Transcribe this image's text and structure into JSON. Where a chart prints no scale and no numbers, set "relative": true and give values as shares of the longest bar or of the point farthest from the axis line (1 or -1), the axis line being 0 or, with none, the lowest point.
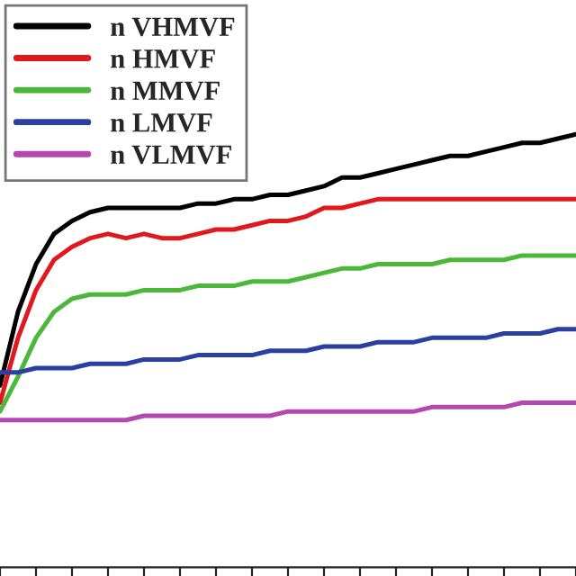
{
  "chart_data": {
    "type": "line",
    "relative": true,
    "legend": "top left",
    "grid": false,
    "categories": [
      null,
      null,
      null,
      null,
      null,
      null,
      null,
      null,
      null,
      null,
      null,
      null,
      null,
      null,
      null,
      null,
      null,
      null,
      null,
      null,
      null,
      null,
      null,
      null,
      null,
      null,
      null,
      null,
      null,
      null,
      null,
      null,
      null
    ],
    "series": [
      {
        "name": "n VHMVF",
        "color": "#000000",
        "values": [
          0.42,
          0.59,
          0.7,
          0.77,
          0.8,
          0.82,
          0.83,
          0.83,
          0.83,
          0.83,
          0.83,
          0.84,
          0.84,
          0.85,
          0.85,
          0.86,
          0.86,
          0.87,
          0.88,
          0.9,
          0.9,
          0.91,
          0.92,
          0.93,
          0.94,
          0.95,
          0.95,
          0.96,
          0.97,
          0.98,
          0.98,
          0.99,
          1.0
        ]
      },
      {
        "name": "n HMVF",
        "color": "#e0191e",
        "values": [
          0.38,
          0.53,
          0.64,
          0.71,
          0.74,
          0.76,
          0.77,
          0.76,
          0.77,
          0.76,
          0.76,
          0.77,
          0.78,
          0.78,
          0.79,
          0.8,
          0.8,
          0.81,
          0.83,
          0.83,
          0.84,
          0.85,
          0.85,
          0.85,
          0.85,
          0.85,
          0.85,
          0.85,
          0.85,
          0.85,
          0.85,
          0.85,
          0.85
        ]
      },
      {
        "name": "n MMVF",
        "color": "#4cb83a",
        "values": [
          0.36,
          0.44,
          0.53,
          0.59,
          0.62,
          0.63,
          0.63,
          0.63,
          0.64,
          0.64,
          0.64,
          0.65,
          0.65,
          0.65,
          0.66,
          0.66,
          0.66,
          0.67,
          0.68,
          0.69,
          0.69,
          0.7,
          0.7,
          0.7,
          0.7,
          0.71,
          0.71,
          0.71,
          0.71,
          0.72,
          0.72,
          0.72,
          0.72
        ]
      },
      {
        "name": "n LMVF",
        "color": "#2a3fa0",
        "values": [
          0.45,
          0.45,
          0.46,
          0.46,
          0.46,
          0.47,
          0.47,
          0.47,
          0.48,
          0.48,
          0.48,
          0.49,
          0.49,
          0.49,
          0.49,
          0.5,
          0.5,
          0.5,
          0.51,
          0.51,
          0.51,
          0.52,
          0.52,
          0.52,
          0.53,
          0.53,
          0.53,
          0.53,
          0.54,
          0.54,
          0.54,
          0.55,
          0.55
        ]
      },
      {
        "name": "n VLMVF",
        "color": "#b548b0",
        "values": [
          0.34,
          0.34,
          0.34,
          0.34,
          0.34,
          0.34,
          0.34,
          0.34,
          0.35,
          0.35,
          0.35,
          0.35,
          0.35,
          0.35,
          0.35,
          0.35,
          0.36,
          0.36,
          0.36,
          0.36,
          0.36,
          0.36,
          0.36,
          0.36,
          0.37,
          0.37,
          0.37,
          0.37,
          0.37,
          0.38,
          0.38,
          0.38,
          0.38
        ]
      }
    ]
  }
}
